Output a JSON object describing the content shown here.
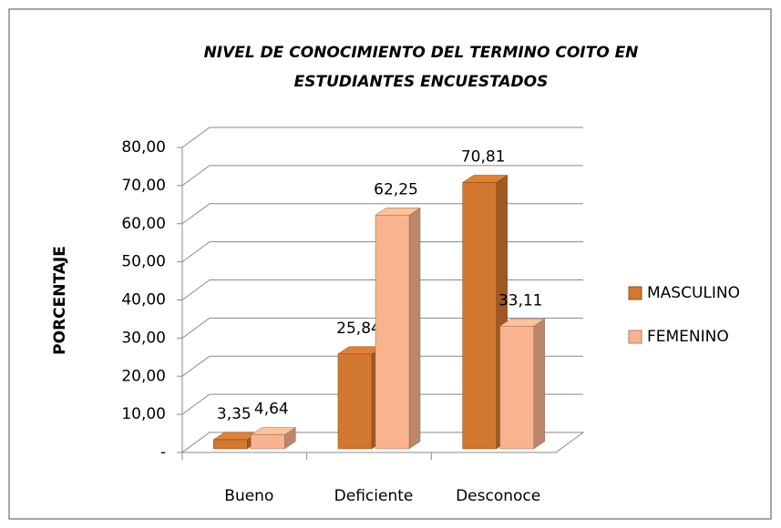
{
  "chart_data": {
    "type": "bar3d",
    "title": [
      "NIVEL DE CONOCIMIENTO DEL TERMINO COITO EN",
      "ESTUDIANTES ENCUESTADOS"
    ],
    "y_label": "PORCENTAJE",
    "categories": [
      "Bueno",
      "Deficiente",
      "Desconoce"
    ],
    "series": [
      {
        "name": "MASCULINO",
        "color": "#d2772f",
        "values": [
          3.35,
          25.84,
          70.81
        ],
        "value_labels": [
          "3,35",
          "25,84",
          "70,81"
        ]
      },
      {
        "name": "FEMENINO",
        "color": "#f9b48f",
        "values": [
          4.64,
          62.25,
          33.11
        ],
        "value_labels": [
          "4,64",
          "62,25",
          "33,11"
        ]
      }
    ],
    "ylim": [
      0,
      80
    ],
    "yticks": [
      {
        "value": 0,
        "label": "-"
      },
      {
        "value": 10,
        "label": "10,00"
      },
      {
        "value": 20,
        "label": "20,00"
      },
      {
        "value": 30,
        "label": "30,00"
      },
      {
        "value": 40,
        "label": "40,00"
      },
      {
        "value": 50,
        "label": "50,00"
      },
      {
        "value": 60,
        "label": "60,00"
      },
      {
        "value": 70,
        "label": "70,00"
      },
      {
        "value": 80,
        "label": "80,00"
      }
    ],
    "grid": true,
    "legend": "right"
  }
}
